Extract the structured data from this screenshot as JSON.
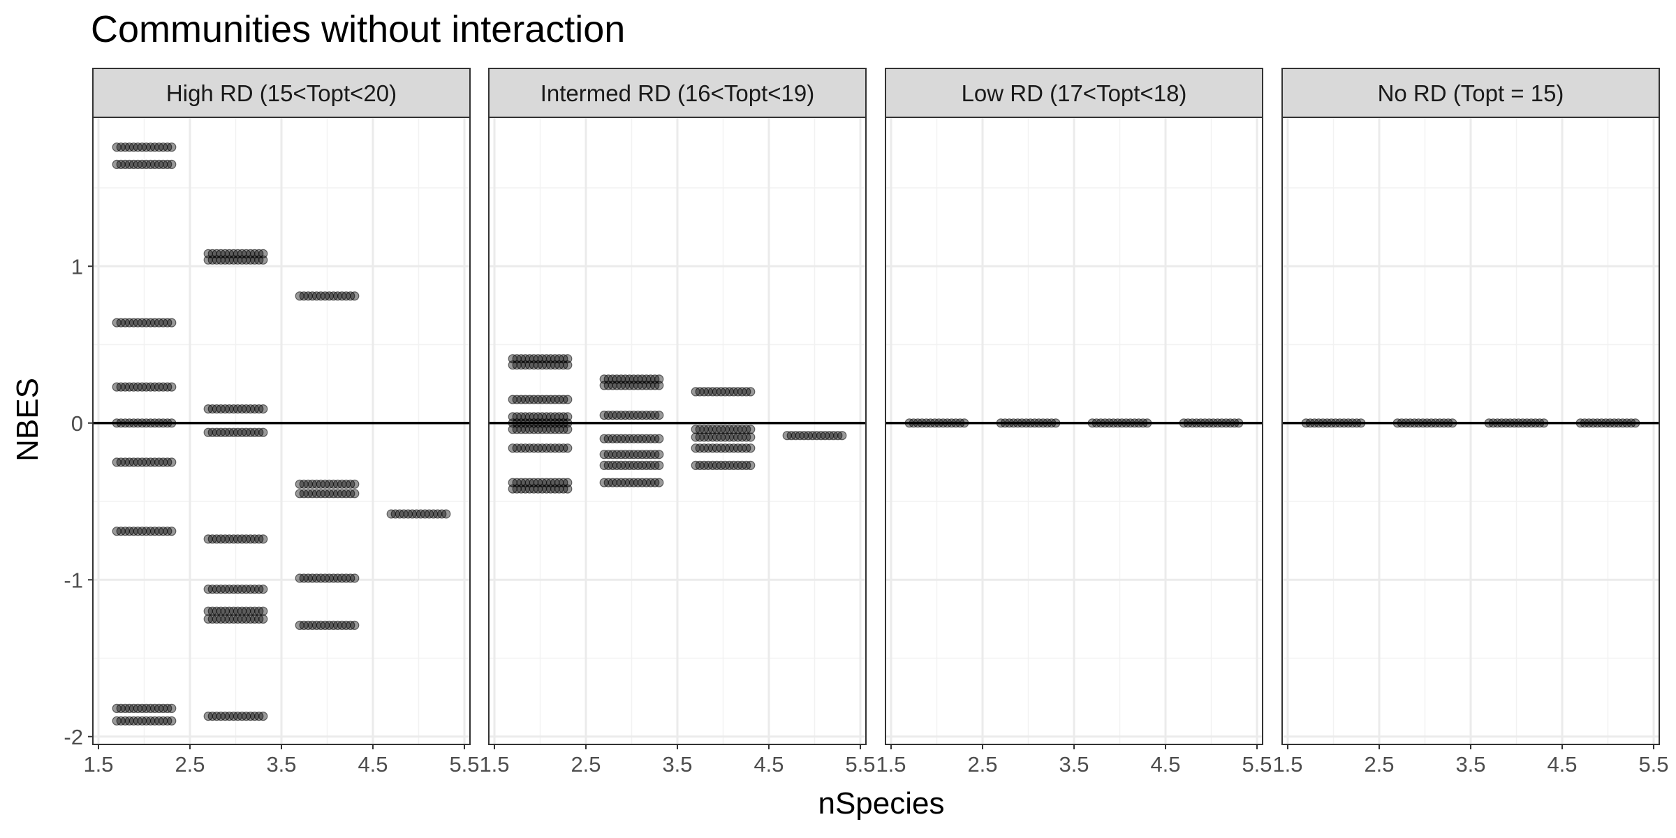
{
  "chart_data": {
    "type": "scatter",
    "title": "Communities without interaction",
    "xlabel": "nSpecies",
    "ylabel": "NBES",
    "xlim": [
      1.5,
      5.5
    ],
    "ylim": [
      -2.05,
      1.95
    ],
    "x_ticks": [
      1.5,
      2.5,
      3.5,
      4.5,
      5.5
    ],
    "x_tick_labels": [
      "1.5",
      "2.5",
      "3.5",
      "4.5",
      "5.5"
    ],
    "y_ticks": [
      -2,
      -1,
      0,
      1
    ],
    "y_tick_labels": [
      "-2",
      "-1",
      "0",
      "1"
    ],
    "reference_line_y": 0,
    "point_color": "#000000",
    "point_alpha": 0.4,
    "grid": true,
    "facets": [
      {
        "label": "High RD (15<Topt<20)",
        "groups": [
          {
            "x": 2,
            "y": [
              1.76,
              1.65,
              0.64,
              0.23,
              0.0,
              -0.25,
              -0.69,
              -1.82,
              -1.9
            ]
          },
          {
            "x": 3,
            "y": [
              1.08,
              1.04,
              0.09,
              -0.06,
              -0.74,
              -1.06,
              -1.2,
              -1.25,
              -1.87
            ]
          },
          {
            "x": 4,
            "y": [
              0.81,
              -0.39,
              -0.45,
              -0.99,
              -1.29
            ]
          },
          {
            "x": 5,
            "y": [
              -0.58
            ]
          }
        ]
      },
      {
        "label": "Intermed RD (16<Topt<19)",
        "groups": [
          {
            "x": 2,
            "y": [
              0.41,
              0.37,
              0.15,
              0.04,
              0.0,
              -0.04,
              -0.16,
              -0.38,
              -0.42
            ]
          },
          {
            "x": 3,
            "y": [
              0.28,
              0.24,
              0.05,
              -0.1,
              -0.2,
              -0.27,
              -0.38
            ]
          },
          {
            "x": 4,
            "y": [
              0.2,
              -0.04,
              -0.09,
              -0.16,
              -0.27
            ]
          },
          {
            "x": 5,
            "y": [
              -0.08
            ]
          }
        ]
      },
      {
        "label": "Low RD (17<Topt<18)",
        "groups": [
          {
            "x": 2,
            "y": [
              0.0
            ]
          },
          {
            "x": 3,
            "y": [
              0.0
            ]
          },
          {
            "x": 4,
            "y": [
              0.0
            ]
          },
          {
            "x": 5,
            "y": [
              0.0
            ]
          }
        ]
      },
      {
        "label": "No RD (Topt = 15)",
        "groups": [
          {
            "x": 2,
            "y": [
              0.0
            ]
          },
          {
            "x": 3,
            "y": [
              0.0
            ]
          },
          {
            "x": 4,
            "y": [
              0.0
            ]
          },
          {
            "x": 5,
            "y": [
              0.0
            ]
          }
        ]
      }
    ]
  }
}
